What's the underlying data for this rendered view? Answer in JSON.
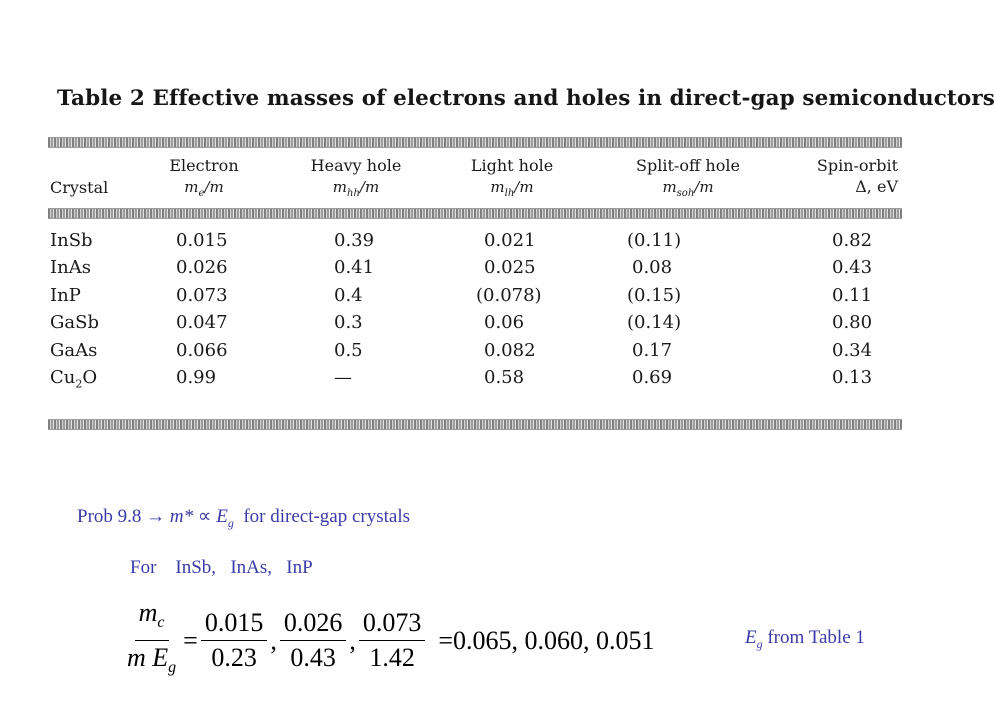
{
  "table": {
    "title": "Table 2  Effective masses of electrons and holes in direct-gap semiconductors",
    "headers": {
      "crystal": "Crystal",
      "electron": "Electron",
      "electron_sym": "m",
      "electron_sub": "e",
      "heavy": "Heavy hole",
      "heavy_sym": "m",
      "heavy_sub": "hh",
      "light": "Light hole",
      "light_sym": "m",
      "light_sub": "lh",
      "splitoff": "Split-off hole",
      "splitoff_sym": "m",
      "splitoff_sub": "soh",
      "spinorbit": "Spin-orbit",
      "spinorbit_unit": "Δ, eV",
      "over_m": "/m"
    },
    "rows": [
      {
        "crystal": "InSb",
        "electron": "0.015",
        "heavy": "0.39",
        "light": "0.021",
        "splitoff": "(0.11)",
        "spinorbit": "0.82"
      },
      {
        "crystal": "InAs",
        "electron": "0.026",
        "heavy": "0.41",
        "light": "0.025",
        "splitoff": "0.08",
        "spinorbit": "0.43"
      },
      {
        "crystal": "InP",
        "electron": "0.073",
        "heavy": "0.4",
        "light": "(0.078)",
        "splitoff": "(0.15)",
        "spinorbit": "0.11"
      },
      {
        "crystal": "GaSb",
        "electron": "0.047",
        "heavy": "0.3",
        "light": "0.06",
        "splitoff": "(0.14)",
        "spinorbit": "0.80"
      },
      {
        "crystal": "GaAs",
        "electron": "0.066",
        "heavy": "0.5",
        "light": "0.082",
        "splitoff": "0.17",
        "spinorbit": "0.34"
      },
      {
        "crystal": "Cu",
        "crystal_sub": "2",
        "crystal_suffix": "O",
        "electron": "0.99",
        "heavy": "—",
        "light": "0.58",
        "splitoff": "0.69",
        "spinorbit": "0.13"
      }
    ]
  },
  "slide": {
    "prob_label": "Prob 9.8 →",
    "prob_mstar": "m*",
    "prob_prop": "∝",
    "prob_E": "E",
    "prob_g": "g",
    "prob_rest": "for direct-gap crystals",
    "for_label": "For",
    "for_crystals": [
      "InSb,",
      "InAs,",
      "InP"
    ],
    "lhs_num": "m",
    "lhs_num_sub": "c",
    "lhs_den": "m E",
    "lhs_den_sub": "g",
    "fracs": [
      {
        "num": "0.015",
        "den": "0.23"
      },
      {
        "num": "0.026",
        "den": "0.43"
      },
      {
        "num": "0.073",
        "den": "1.42"
      }
    ],
    "result": "=0.065, 0.060, 0.051",
    "eg_E": "E",
    "eg_g": "g",
    "eg_rest": "from Table 1"
  }
}
